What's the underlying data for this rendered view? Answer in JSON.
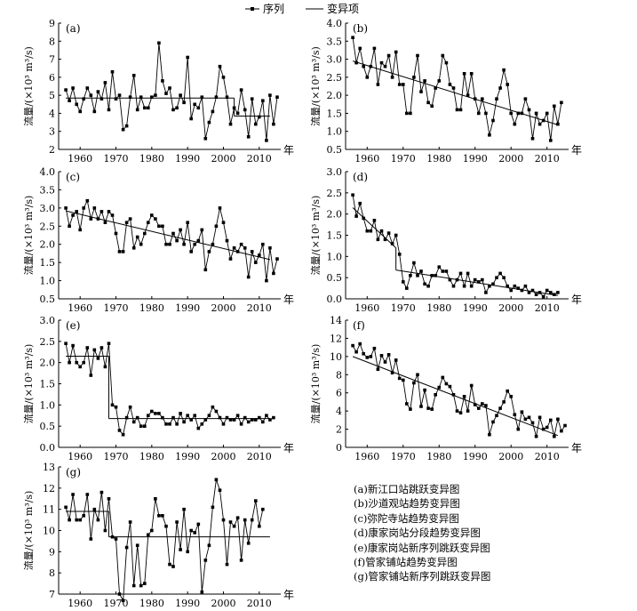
{
  "legend": {
    "series_label": "序列",
    "trend_label": "变异项"
  },
  "captions": [
    "(a)新江口站跳跃变异图",
    "(b)沙道观站趋势变异图",
    "(c)弥陀寺站趋势变异图",
    "(d)康家岗站分段趋势变异图",
    "(e)康家岗站新序列跳跃变异图",
    "(f)管家铺站趋势变异图",
    "(g)管家铺站新序列跳跃变异图"
  ],
  "chart_data": [
    {
      "id": "a",
      "type": "line",
      "panel_label": "(a)",
      "ylabel": "流量/(×10³ m³/s)",
      "x_unit_label": "年",
      "xlim": [
        1954,
        2016
      ],
      "ylim": [
        2,
        9
      ],
      "xticks": [
        1960,
        1970,
        1980,
        1990,
        2000,
        2010
      ],
      "yticks": [
        2,
        3,
        4,
        5,
        6,
        7,
        8,
        9
      ],
      "x_start": 1956,
      "series": [
        {
          "values": [
            5.3,
            4.7,
            5.4,
            4.5,
            4.1,
            4.8,
            5.4,
            5.0,
            4.1,
            5.2,
            4.8,
            5.7,
            4.2,
            6.3,
            4.8,
            5.0,
            3.1,
            3.3,
            4.9,
            6.1,
            4.2,
            4.9,
            4.3,
            4.3,
            4.9,
            5.0,
            7.9,
            5.8,
            5.1,
            5.4,
            4.2,
            4.3,
            5.0,
            4.6,
            7.1,
            3.7,
            4.5,
            4.3,
            4.9,
            2.6,
            3.5,
            4.1,
            4.9,
            6.6,
            6.0,
            4.9,
            3.4,
            4.3,
            4.0,
            5.3,
            4.2,
            2.7,
            4.8,
            3.4,
            3.8,
            4.7,
            2.5,
            5.0,
            3.4,
            4.9
          ]
        }
      ],
      "trend": [
        {
          "x": [
            1956,
            2003
          ],
          "y": [
            4.85,
            4.85
          ]
        },
        {
          "x": [
            2003,
            2013
          ],
          "y": [
            3.85,
            3.85
          ]
        }
      ]
    },
    {
      "id": "b",
      "type": "line",
      "panel_label": "(b)",
      "ylabel": "流量/(×10³ m³/s)",
      "x_unit_label": "年",
      "xlim": [
        1954,
        2016
      ],
      "ylim": [
        0.5,
        4.0
      ],
      "xticks": [
        1960,
        1970,
        1980,
        1990,
        2000,
        2010
      ],
      "yticks": [
        0.5,
        1.0,
        1.5,
        2.0,
        2.5,
        3.0,
        3.5,
        4.0
      ],
      "x_start": 1956,
      "series": [
        {
          "values": [
            3.6,
            2.9,
            3.3,
            2.8,
            2.5,
            2.8,
            3.3,
            2.3,
            2.9,
            2.8,
            3.1,
            2.5,
            3.2,
            2.3,
            2.3,
            1.5,
            1.5,
            2.5,
            3.1,
            2.1,
            2.4,
            1.8,
            1.7,
            2.2,
            2.4,
            3.1,
            2.9,
            2.3,
            2.2,
            1.6,
            1.6,
            2.6,
            2.0,
            2.6,
            1.9,
            1.5,
            1.9,
            1.5,
            0.9,
            1.3,
            1.9,
            2.2,
            2.7,
            2.3,
            1.5,
            1.2,
            1.5,
            1.5,
            1.9,
            1.6,
            0.8,
            1.5,
            1.2,
            1.3,
            1.5,
            0.75,
            1.7,
            1.2,
            1.8
          ]
        }
      ],
      "trend": [
        {
          "x": [
            1956,
            2013
          ],
          "y": [
            2.95,
            1.18
          ]
        }
      ]
    },
    {
      "id": "c",
      "type": "line",
      "panel_label": "(c)",
      "ylabel": "流量/(×10³ m³/s)",
      "x_unit_label": "年",
      "xlim": [
        1954,
        2016
      ],
      "ylim": [
        0.5,
        4.0
      ],
      "xticks": [
        1960,
        1970,
        1980,
        1990,
        2000,
        2010
      ],
      "yticks": [
        0.5,
        1.0,
        1.5,
        2.0,
        2.5,
        3.0,
        3.5,
        4.0
      ],
      "x_start": 1956,
      "series": [
        {
          "values": [
            3.0,
            2.5,
            2.8,
            2.9,
            2.4,
            3.0,
            3.2,
            2.7,
            3.0,
            2.7,
            2.9,
            2.6,
            2.9,
            2.8,
            2.3,
            1.8,
            1.8,
            2.6,
            2.7,
            1.9,
            2.2,
            2.0,
            2.3,
            2.6,
            2.8,
            2.7,
            2.5,
            2.5,
            2.0,
            2.0,
            2.3,
            2.1,
            2.4,
            2.0,
            2.6,
            1.8,
            2.0,
            2.1,
            2.4,
            1.3,
            1.8,
            2.0,
            2.5,
            3.0,
            2.6,
            2.1,
            1.6,
            1.9,
            1.8,
            2.0,
            1.9,
            1.1,
            1.8,
            1.5,
            1.7,
            2.0,
            1.0,
            1.9,
            1.2,
            1.6
          ]
        }
      ],
      "trend": [
        {
          "x": [
            1956,
            2013
          ],
          "y": [
            2.92,
            1.58
          ]
        }
      ]
    },
    {
      "id": "d",
      "type": "line",
      "panel_label": "(d)",
      "ylabel": "流量/(×10³ m³/s)",
      "x_unit_label": "年",
      "xlim": [
        1954,
        2016
      ],
      "ylim": [
        0,
        3.0
      ],
      "xticks": [
        1960,
        1970,
        1980,
        1990,
        2000,
        2010
      ],
      "yticks": [
        0,
        0.5,
        1.0,
        1.5,
        2.0,
        2.5,
        3.0
      ],
      "x_start": 1956,
      "series": [
        {
          "values": [
            2.45,
            1.95,
            2.25,
            1.9,
            1.6,
            1.6,
            1.85,
            1.4,
            1.6,
            1.4,
            1.55,
            1.3,
            1.5,
            1.05,
            0.4,
            0.25,
            0.55,
            0.85,
            0.55,
            0.65,
            0.35,
            0.3,
            0.55,
            0.55,
            0.75,
            0.65,
            0.65,
            0.45,
            0.3,
            0.45,
            0.6,
            0.3,
            0.6,
            0.3,
            0.45,
            0.4,
            0.45,
            0.15,
            0.3,
            0.35,
            0.5,
            0.6,
            0.5,
            0.3,
            0.2,
            0.3,
            0.25,
            0.2,
            0.3,
            0.15,
            0.2,
            0.1,
            0.15,
            0.05,
            0.2,
            0.15,
            0.1,
            0.15
          ]
        }
      ],
      "trend": [
        {
          "x": [
            1956,
            1968
          ],
          "y": [
            2.15,
            1.2
          ]
        },
        {
          "x": [
            1968,
            2013
          ],
          "y": [
            0.68,
            0.08
          ]
        }
      ]
    },
    {
      "id": "e",
      "type": "line",
      "panel_label": "(e)",
      "ylabel": "流量/(×10³ m³/s)",
      "x_unit_label": "年",
      "xlim": [
        1954,
        2016
      ],
      "ylim": [
        0,
        3.0
      ],
      "xticks": [
        1960,
        1970,
        1980,
        1990,
        2000,
        2010
      ],
      "yticks": [
        0,
        0.5,
        1.0,
        1.5,
        2.0,
        2.5,
        3.0
      ],
      "x_start": 1956,
      "series": [
        {
          "values": [
            2.45,
            2.0,
            2.4,
            2.0,
            1.9,
            2.0,
            2.35,
            1.7,
            2.3,
            2.1,
            2.35,
            1.9,
            2.45,
            1.0,
            0.95,
            0.4,
            0.3,
            0.7,
            0.95,
            0.6,
            0.7,
            0.5,
            0.5,
            0.75,
            0.85,
            0.8,
            0.8,
            0.7,
            0.55,
            0.55,
            0.7,
            0.55,
            0.8,
            0.6,
            0.75,
            0.65,
            0.75,
            0.45,
            0.55,
            0.65,
            0.75,
            0.95,
            0.85,
            0.7,
            0.55,
            0.7,
            0.65,
            0.65,
            0.75,
            0.55,
            0.7,
            0.6,
            0.65,
            0.65,
            0.7,
            0.6,
            0.75,
            0.65,
            0.7
          ]
        }
      ],
      "trend": [
        {
          "x": [
            1956,
            1968
          ],
          "y": [
            2.15,
            2.15
          ]
        },
        {
          "x": [
            1968,
            2013
          ],
          "y": [
            0.68,
            0.68
          ]
        }
      ]
    },
    {
      "id": "f",
      "type": "line",
      "panel_label": "(f)",
      "ylabel": "流量/(×10³ m³/s)",
      "x_unit_label": "年",
      "xlim": [
        1954,
        2016
      ],
      "ylim": [
        0,
        14
      ],
      "xticks": [
        1960,
        1970,
        1980,
        1990,
        2000,
        2010
      ],
      "yticks": [
        0,
        2,
        4,
        6,
        8,
        10,
        12,
        14
      ],
      "x_start": 1956,
      "series": [
        {
          "values": [
            11.2,
            10.5,
            11.4,
            10.3,
            9.9,
            10.0,
            10.9,
            8.6,
            10.1,
            9.4,
            10.2,
            8.2,
            9.6,
            7.6,
            7.4,
            4.8,
            4.2,
            7.1,
            8.0,
            4.5,
            6.3,
            4.3,
            4.2,
            5.8,
            6.6,
            7.7,
            7.0,
            6.7,
            5.8,
            4.0,
            3.8,
            5.6,
            4.0,
            6.8,
            4.7,
            4.3,
            4.8,
            4.6,
            1.4,
            2.8,
            3.5,
            4.3,
            5.0,
            6.2,
            5.6,
            3.6,
            2.0,
            3.9,
            3.1,
            3.3,
            2.7,
            1.2,
            3.3,
            2.0,
            2.2,
            3.0,
            1.2,
            3.1,
            1.8,
            2.4
          ]
        }
      ],
      "trend": [
        {
          "x": [
            1956,
            2013
          ],
          "y": [
            10.0,
            1.3
          ]
        }
      ]
    },
    {
      "id": "g",
      "type": "line",
      "panel_label": "(g)",
      "ylabel": "流量/(×10³ m³/s)",
      "x_unit_label": "年",
      "xlim": [
        1954,
        2016
      ],
      "ylim": [
        7,
        13
      ],
      "xticks": [
        1960,
        1970,
        1980,
        1990,
        2000,
        2010
      ],
      "yticks": [
        7,
        8,
        9,
        10,
        11,
        12,
        13
      ],
      "x_start": 1956,
      "series": [
        {
          "values": [
            11.1,
            10.5,
            11.7,
            10.5,
            10.5,
            10.7,
            11.7,
            9.6,
            11.0,
            10.5,
            11.8,
            10.0,
            11.5,
            9.7,
            9.6,
            7.0,
            6.7,
            9.2,
            10.4,
            7.4,
            9.3,
            7.4,
            7.5,
            9.8,
            10.0,
            11.5,
            10.7,
            10.7,
            10.2,
            8.4,
            8.3,
            10.4,
            9.1,
            11.0,
            9.0,
            10.0,
            9.9,
            10.3,
            7.1,
            8.6,
            9.3,
            11.1,
            12.4,
            11.9,
            10.5,
            8.4,
            10.4,
            10.2,
            10.6,
            8.6,
            10.5,
            9.4,
            10.5,
            11.4,
            10.2,
            11.0
          ]
        }
      ],
      "trend": [
        {
          "x": [
            1956,
            1968
          ],
          "y": [
            10.9,
            10.9
          ]
        },
        {
          "x": [
            1968,
            2013
          ],
          "y": [
            9.7,
            9.7
          ]
        }
      ]
    }
  ]
}
